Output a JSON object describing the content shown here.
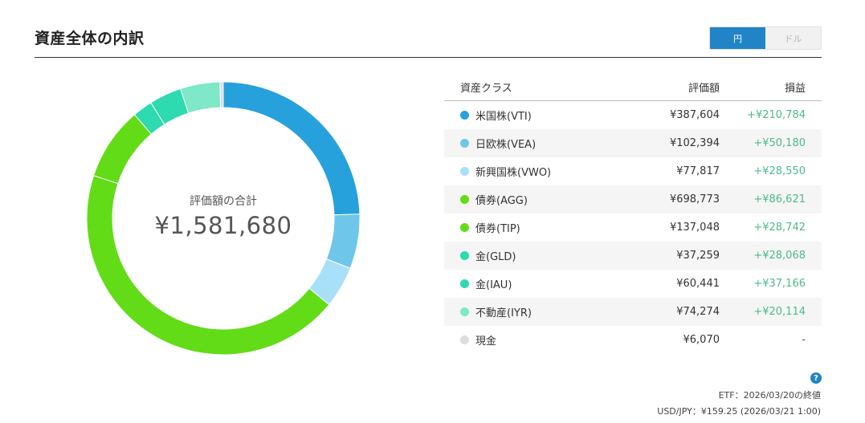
{
  "header": {
    "title": "資産全体の内訳"
  },
  "currency_toggle": {
    "yen_label": "円",
    "dollar_label": "ドル",
    "selected": "円"
  },
  "summary": {
    "label": "評価額の合計",
    "total": "¥1,581,680"
  },
  "table": {
    "headers": {
      "asset_class": "資産クラス",
      "valuation": "評価額",
      "gain": "損益"
    },
    "rows": [
      {
        "name": "米国株(VTI)",
        "valuation": "¥387,604",
        "gain": "+¥210,784",
        "color": "#26a1dc"
      },
      {
        "name": "日欧株(VEA)",
        "valuation": "¥102,394",
        "gain": "+¥50,180",
        "color": "#6ec6ea"
      },
      {
        "name": "新興国株(VWO)",
        "valuation": "¥77,817",
        "gain": "+¥28,550",
        "color": "#a8e0fa"
      },
      {
        "name": "債券(AGG)",
        "valuation": "¥698,773",
        "gain": "+¥86,621",
        "color": "#62dc16"
      },
      {
        "name": "債券(TIP)",
        "valuation": "¥137,048",
        "gain": "+¥28,742",
        "color": "#62dc16"
      },
      {
        "name": "金(GLD)",
        "valuation": "¥37,259",
        "gain": "+¥28,068",
        "color": "#2edab0"
      },
      {
        "name": "金(IAU)",
        "valuation": "¥60,441",
        "gain": "+¥37,166",
        "color": "#2edab0"
      },
      {
        "name": "不動産(IYR)",
        "valuation": "¥74,274",
        "gain": "+¥20,114",
        "color": "#7ee8c8"
      },
      {
        "name": "現金",
        "valuation": "¥6,070",
        "gain": "-",
        "color": "#dddddd"
      }
    ]
  },
  "footer": {
    "help_icon": "question-circle-icon",
    "etf_note": "ETF：2026/03/20の終値",
    "fx_note": "USD/JPY：¥159.25 (2026/03/21 1:00)"
  },
  "chart_data": {
    "type": "pie",
    "categories": [
      "米国株(VTI)",
      "日欧株(VEA)",
      "新興国株(VWO)",
      "債券(AGG)",
      "債券(TIP)",
      "金(GLD)",
      "金(IAU)",
      "不動産(IYR)",
      "現金"
    ],
    "values": [
      387604,
      102394,
      77817,
      698773,
      137048,
      37259,
      60441,
      74274,
      6070
    ],
    "colors": [
      "#26a1dc",
      "#6ec6ea",
      "#a8e0fa",
      "#62dc16",
      "#62dc16",
      "#2edab0",
      "#2edab0",
      "#7ee8c8",
      "#dddddd"
    ],
    "title": "",
    "style": "donut"
  }
}
